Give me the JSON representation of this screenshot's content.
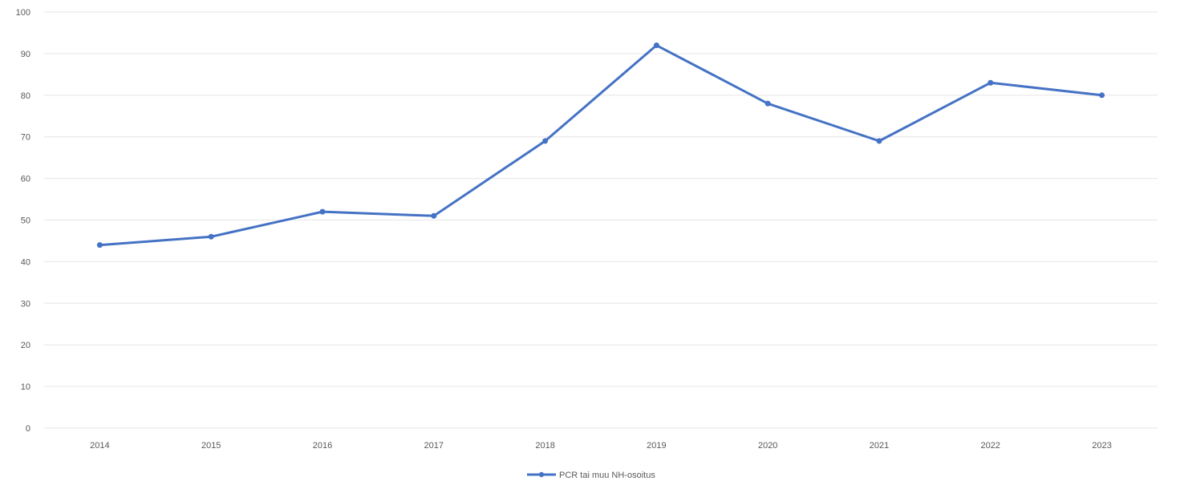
{
  "chart_data": {
    "type": "line",
    "title": "",
    "xlabel": "",
    "ylabel": "",
    "categories": [
      "2014",
      "2015",
      "2016",
      "2017",
      "2018",
      "2019",
      "2020",
      "2021",
      "2022",
      "2023"
    ],
    "series": [
      {
        "name": "PCR tai muu NH-osoitus",
        "values": [
          44,
          46,
          52,
          51,
          69,
          92,
          78,
          69,
          83,
          80
        ],
        "color": "#4472c4"
      }
    ],
    "ylim": [
      0,
      100
    ],
    "yticks": [
      0,
      10,
      20,
      30,
      40,
      50,
      60,
      70,
      80,
      90,
      100
    ],
    "grid": true,
    "legend_position": "bottom-center",
    "colors": {
      "grid": "#e6e6e6",
      "text": "#595959"
    }
  }
}
